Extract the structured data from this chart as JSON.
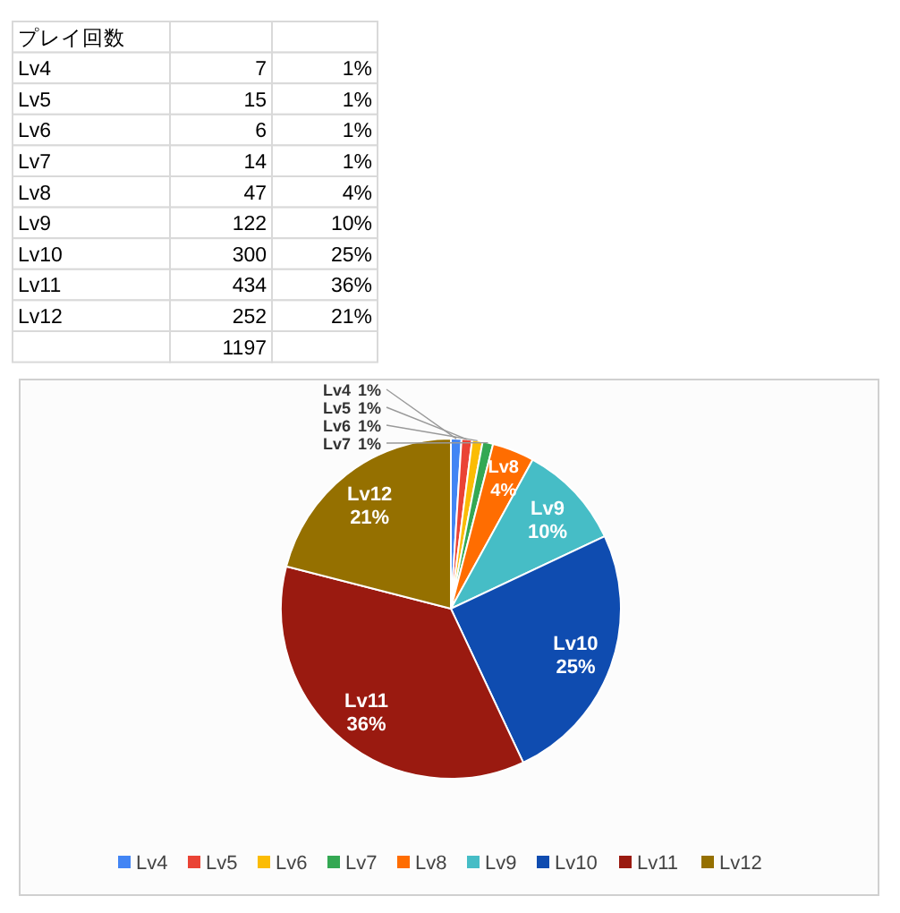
{
  "chart_data": [
    {
      "type": "other",
      "title": "プレイ回数",
      "categories": [
        "Lv4",
        "Lv5",
        "Lv6",
        "Lv7",
        "Lv8",
        "Lv9",
        "Lv10",
        "Lv11",
        "Lv12"
      ],
      "values": [
        7,
        15,
        6,
        14,
        47,
        122,
        300,
        434,
        252
      ],
      "annotations": [
        "1%",
        "1%",
        "1%",
        "1%",
        "4%",
        "10%",
        "25%",
        "36%",
        "21%"
      ],
      "data_labels": true,
      "totals": [
        "1197"
      ]
    },
    {
      "type": "pie",
      "categories": [
        "Lv4",
        "Lv5",
        "Lv6",
        "Lv7",
        "Lv8",
        "Lv9",
        "Lv10",
        "Lv11",
        "Lv12"
      ],
      "values": [
        1,
        1,
        1,
        1,
        4,
        10,
        25,
        36,
        21
      ],
      "value_labels": [
        "1%",
        "1%",
        "1%",
        "1%",
        "4%",
        "10%",
        "25%",
        "36%",
        "21%"
      ],
      "colors": [
        "#4285f4",
        "#ea4335",
        "#fbbc04",
        "#34a853",
        "#ff6d01",
        "#46bdc6",
        "#0f4cb0",
        "#9a1a10",
        "#957000"
      ],
      "legend": "bottom"
    }
  ]
}
